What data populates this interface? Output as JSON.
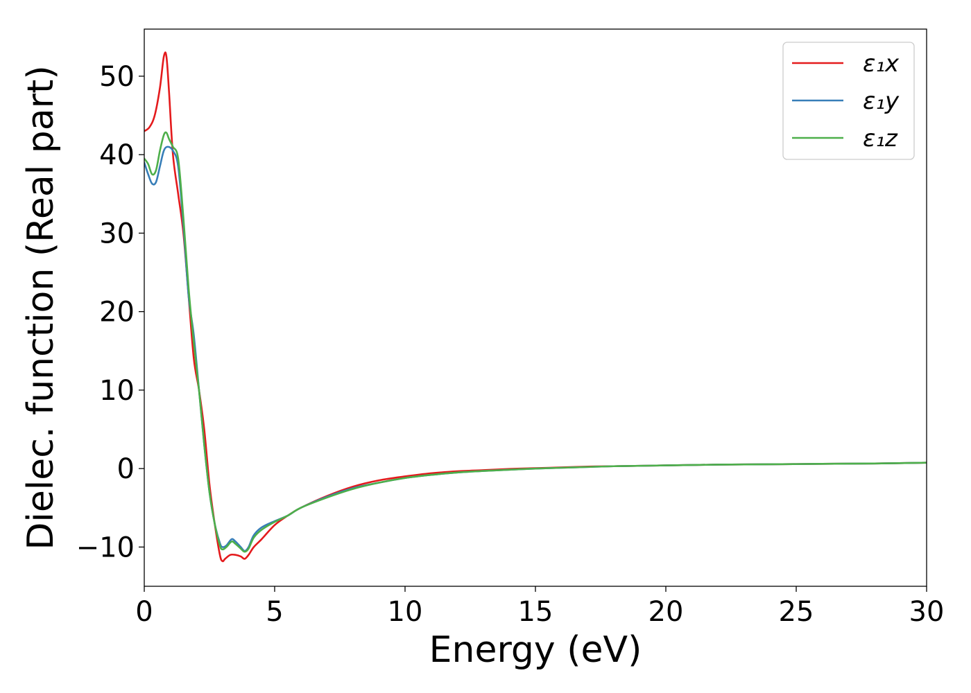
{
  "chart_data": {
    "type": "line",
    "title": "",
    "xlabel": "Energy (eV)",
    "ylabel": "Dielec. function (Real part)",
    "xlim": [
      0,
      30
    ],
    "ylim": [
      -15,
      56
    ],
    "xticks": [
      0,
      5,
      10,
      15,
      20,
      25,
      30
    ],
    "xtick_labels": [
      "0",
      "5",
      "10",
      "15",
      "20",
      "25",
      "30"
    ],
    "yticks": [
      -10,
      0,
      10,
      20,
      30,
      40,
      50
    ],
    "ytick_labels": [
      "−10",
      "0",
      "10",
      "20",
      "30",
      "40",
      "50"
    ],
    "grid": false,
    "legend_position": "top-right",
    "series": [
      {
        "name": "ε₁x",
        "color": "#e41a1c",
        "x": [
          0,
          0.2,
          0.4,
          0.6,
          0.75,
          0.85,
          0.95,
          1.1,
          1.3,
          1.5,
          1.7,
          1.9,
          2.1,
          2.3,
          2.5,
          2.7,
          2.9,
          3.0,
          3.1,
          3.3,
          3.5,
          3.7,
          3.85,
          4.0,
          4.2,
          4.5,
          5.0,
          5.5,
          6.0,
          7.0,
          8.0,
          9.0,
          10.0,
          11.0,
          12.0,
          13.0,
          14.0,
          15.0,
          16.0,
          17.0,
          18.0,
          20.0,
          22.0,
          24.0,
          26.0,
          28.0,
          30.0
        ],
        "y": [
          43.0,
          43.5,
          45.0,
          48.5,
          52.5,
          52.5,
          48.0,
          40.0,
          35.0,
          30.0,
          22.0,
          14.0,
          10.0,
          5.0,
          -2.0,
          -7.0,
          -11.0,
          -11.8,
          -11.5,
          -11.0,
          -11.0,
          -11.2,
          -11.5,
          -11.0,
          -10.0,
          -9.0,
          -7.2,
          -6.0,
          -5.0,
          -3.5,
          -2.3,
          -1.5,
          -1.0,
          -0.6,
          -0.35,
          -0.2,
          -0.05,
          0.05,
          0.15,
          0.25,
          0.3,
          0.4,
          0.5,
          0.55,
          0.6,
          0.65,
          0.75
        ]
      },
      {
        "name": "ε₁y",
        "color": "#377eb8",
        "x": [
          0,
          0.15,
          0.3,
          0.45,
          0.6,
          0.75,
          0.9,
          1.1,
          1.3,
          1.5,
          1.7,
          1.9,
          2.1,
          2.3,
          2.5,
          2.7,
          2.9,
          3.0,
          3.15,
          3.35,
          3.5,
          3.7,
          3.85,
          4.0,
          4.2,
          4.5,
          5.0,
          5.5,
          6.0,
          7.0,
          8.0,
          9.0,
          10.0,
          11.0,
          12.0,
          13.0,
          14.0,
          15.0,
          16.0,
          17.0,
          18.0,
          20.0,
          22.0,
          24.0,
          26.0,
          28.0,
          30.0
        ],
        "y": [
          39.0,
          37.5,
          36.3,
          36.5,
          38.5,
          40.5,
          41.0,
          40.5,
          38.5,
          31.0,
          22.0,
          17.0,
          10.0,
          3.0,
          -3.0,
          -7.0,
          -9.5,
          -10.0,
          -9.8,
          -9.0,
          -9.3,
          -10.0,
          -10.5,
          -10.0,
          -8.5,
          -7.5,
          -6.7,
          -6.0,
          -5.0,
          -3.6,
          -2.5,
          -1.8,
          -1.2,
          -0.8,
          -0.5,
          -0.3,
          -0.15,
          0.0,
          0.1,
          0.2,
          0.3,
          0.4,
          0.5,
          0.55,
          0.6,
          0.65,
          0.75
        ]
      },
      {
        "name": "ε₁z",
        "color": "#4daf4a",
        "x": [
          0,
          0.15,
          0.3,
          0.45,
          0.6,
          0.75,
          0.85,
          0.95,
          1.1,
          1.3,
          1.5,
          1.7,
          1.9,
          2.1,
          2.3,
          2.5,
          2.7,
          2.9,
          3.0,
          3.15,
          3.35,
          3.5,
          3.7,
          3.85,
          4.0,
          4.2,
          4.5,
          5.0,
          5.5,
          6.0,
          7.0,
          8.0,
          9.0,
          10.0,
          11.0,
          12.0,
          13.0,
          14.0,
          15.0,
          16.0,
          17.0,
          18.0,
          20.0,
          22.0,
          24.0,
          26.0,
          28.0,
          30.0
        ],
        "y": [
          39.5,
          38.8,
          37.5,
          38.0,
          40.5,
          42.5,
          42.8,
          42.0,
          41.0,
          39.5,
          32.0,
          23.0,
          16.0,
          10.0,
          3.0,
          -3.0,
          -7.0,
          -9.8,
          -10.3,
          -10.0,
          -9.3,
          -9.6,
          -10.2,
          -10.6,
          -10.2,
          -8.8,
          -7.8,
          -6.8,
          -6.0,
          -5.0,
          -3.7,
          -2.6,
          -1.8,
          -1.2,
          -0.8,
          -0.5,
          -0.3,
          -0.15,
          0.0,
          0.1,
          0.2,
          0.3,
          0.4,
          0.5,
          0.55,
          0.6,
          0.65,
          0.75
        ]
      }
    ]
  }
}
